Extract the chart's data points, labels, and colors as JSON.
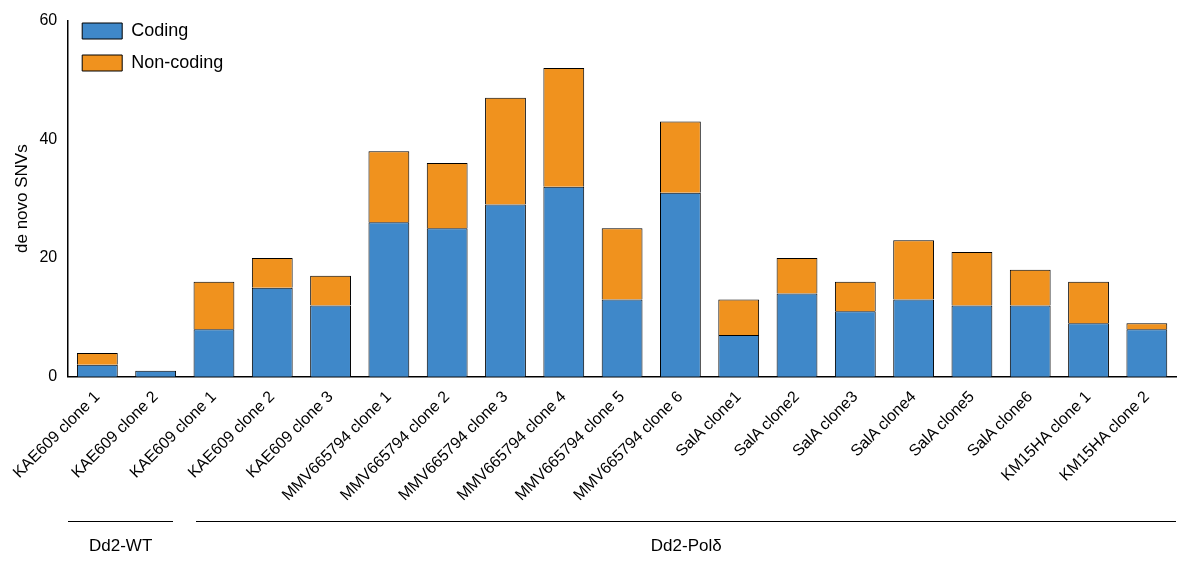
{
  "chart_data": {
    "type": "bar",
    "stacked": true,
    "ylabel": "de novo SNVs",
    "categories": [
      "KAE609 clone 1",
      "KAE609 clone 2",
      "KAE609 clone 1",
      "KAE609 clone 2",
      "KAE609 clone 3",
      "MMV665794 clone 1",
      "MMV665794 clone 2",
      "MMV665794 clone 3",
      "MMV665794 clone 4",
      "MMV665794 clone 5",
      "MMV665794 clone 6",
      "SalA clone1",
      "SalA clone2",
      "SalA clone3",
      "SalA clone4",
      "SalA clone5",
      "SalA clone6",
      "KM15HA clone 1",
      "KM15HA clone 2"
    ],
    "series": [
      {
        "name": "Coding",
        "color": "#3f88c9",
        "values": [
          2,
          1,
          8,
          15,
          12,
          26,
          25,
          29,
          32,
          13,
          31,
          7,
          14,
          11,
          13,
          12,
          12,
          9,
          8
        ]
      },
      {
        "name": "Non-coding",
        "color": "#f0921e",
        "values": [
          2,
          0,
          8,
          5,
          5,
          12,
          11,
          18,
          20,
          12,
          12,
          6,
          6,
          5,
          10,
          9,
          6,
          7,
          1
        ]
      }
    ],
    "ylim": [
      0,
      60
    ],
    "yticks": [
      0,
      20,
      40,
      60
    ],
    "grid": false,
    "legend": "top left",
    "annotations": [
      "Dd2-WT",
      "Dd2-Polδ"
    ]
  }
}
